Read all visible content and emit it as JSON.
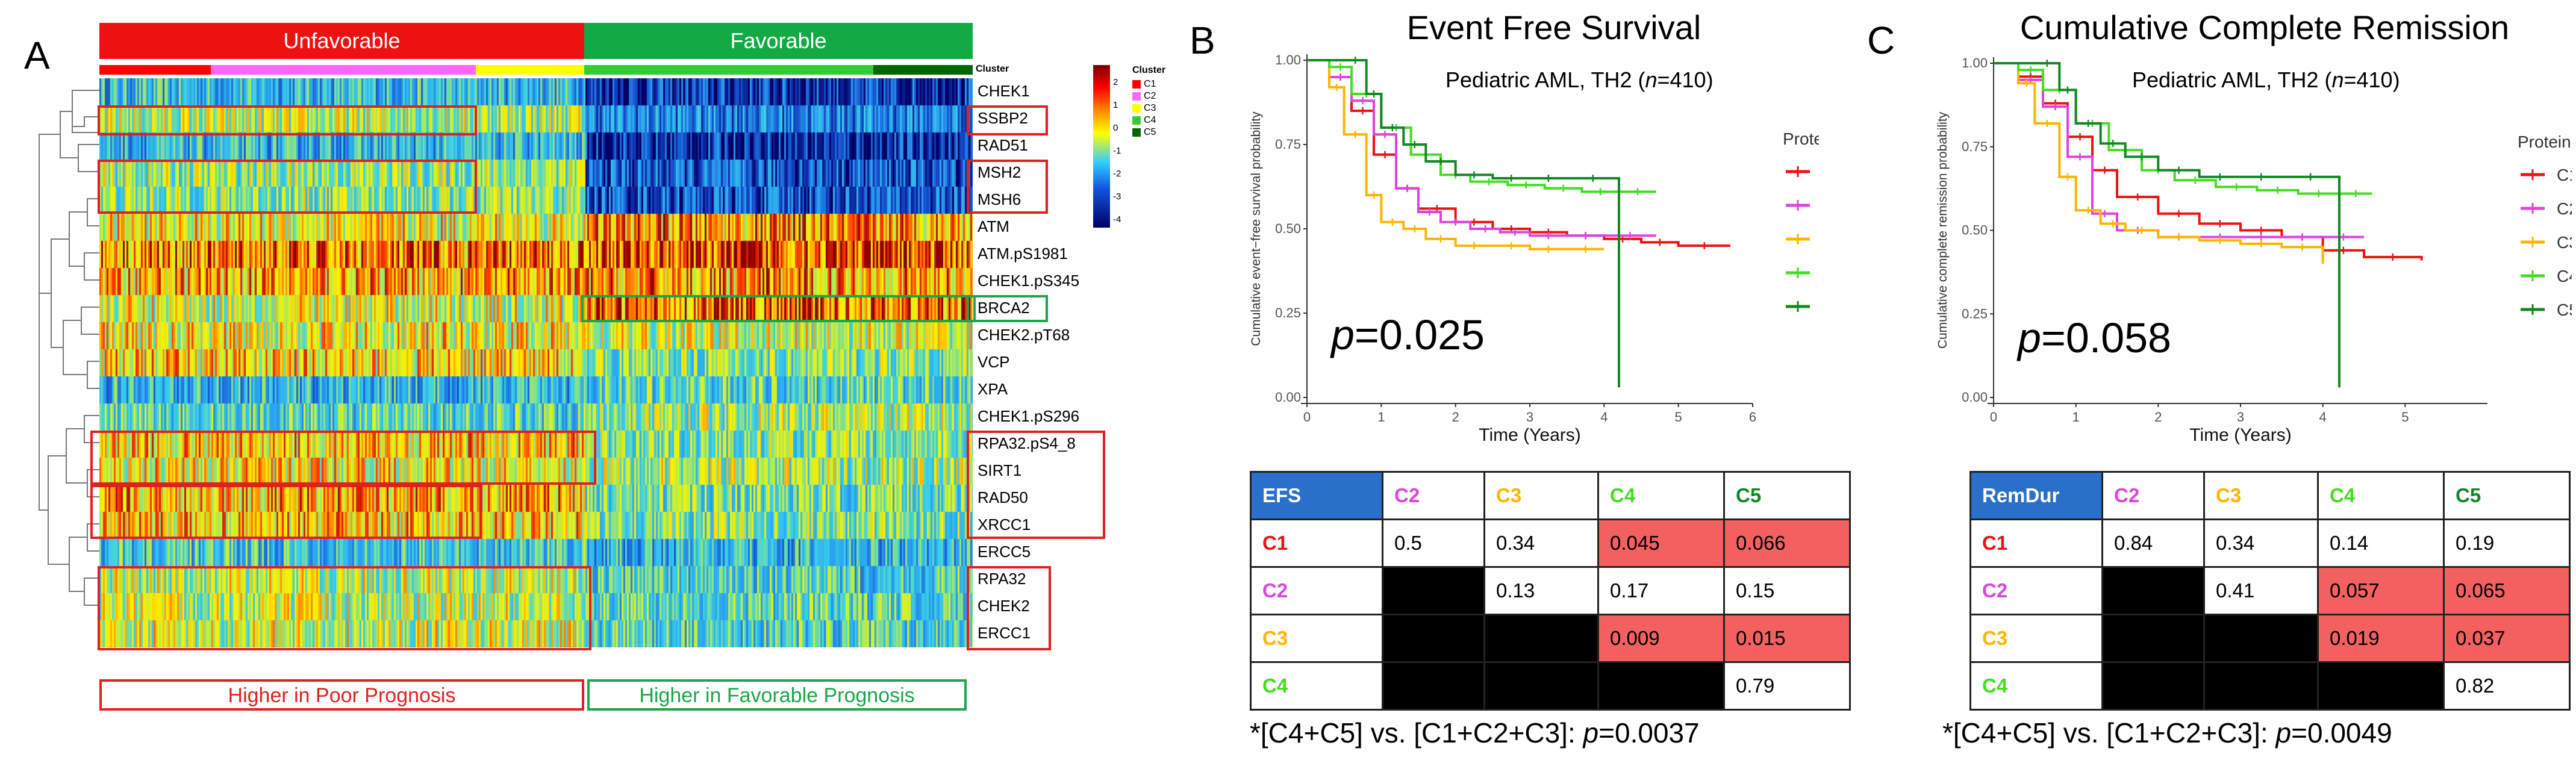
{
  "panels": {
    "a": "A",
    "b": "B",
    "c": "C"
  },
  "heatmap": {
    "unfavorable_label": "Unfavorable",
    "favorable_label": "Favorable",
    "cluster_row_label": "Cluster",
    "genes": [
      "CHEK1",
      "SSBP2",
      "RAD51",
      "MSH2",
      "MSH6",
      "ATM",
      "ATM.pS1981",
      "CHEK1.pS345",
      "BRCA2",
      "CHEK2.pT68",
      "VCP",
      "XPA",
      "CHEK1.pS296",
      "RPA32.pS4_8",
      "SIRT1",
      "RAD50",
      "XRCC1",
      "ERCC5",
      "RPA32",
      "CHEK2",
      "ERCC1"
    ],
    "legend": {
      "title": "Cluster",
      "items": [
        "C1",
        "C2",
        "C3",
        "C4",
        "C5"
      ],
      "colors": [
        "#ff0000",
        "#ff66ff",
        "#ffff00",
        "#33cc33",
        "#006600"
      ],
      "scale_ticks": [
        "2",
        "1",
        "0",
        "-1",
        "-2",
        "-3",
        "-4"
      ]
    },
    "poor_label": "Higher in Poor Prognosis",
    "favorable_prog_label": "Higher in Favorable Prognosis"
  },
  "colors": {
    "C1": "#ee1111",
    "C2": "#dd44dd",
    "C3": "#ffb400",
    "C4": "#44dd22",
    "C5": "#118822"
  },
  "chart_data": [
    {
      "type": "line",
      "title": "Event Free Survival",
      "subtitle_prefix": "Pediatric AML, TH2 (",
      "subtitle_n": "n",
      "subtitle_suffix": "=410)",
      "xlabel": "Time (Years)",
      "ylabel": "Cumulative event−free survival probability",
      "xlim": [
        0,
        6
      ],
      "ylim": [
        0,
        1
      ],
      "xticks": [
        "0",
        "1",
        "2",
        "3",
        "4",
        "5",
        "6"
      ],
      "yticks": [
        "0.00",
        "0.25",
        "0.50",
        "0.75",
        "1.00"
      ],
      "legend_title": "Protein Cluster",
      "p_label": "p",
      "p_value": "=0.025",
      "series": [
        {
          "name": "C1",
          "x": [
            0,
            0.3,
            0.6,
            0.9,
            1.2,
            1.5,
            2,
            2.5,
            3,
            3.5,
            4,
            4.5,
            5,
            5.7
          ],
          "y": [
            1,
            0.95,
            0.85,
            0.72,
            0.62,
            0.56,
            0.52,
            0.5,
            0.49,
            0.48,
            0.47,
            0.46,
            0.45,
            0.45
          ]
        },
        {
          "name": "C2",
          "x": [
            0,
            0.3,
            0.6,
            0.9,
            1.2,
            1.5,
            1.8,
            2.2,
            2.6,
            3,
            3.5,
            4,
            4.7
          ],
          "y": [
            1,
            0.95,
            0.88,
            0.78,
            0.62,
            0.55,
            0.52,
            0.5,
            0.49,
            0.48,
            0.48,
            0.48,
            0.48
          ]
        },
        {
          "name": "C3",
          "x": [
            0,
            0.3,
            0.5,
            0.8,
            1,
            1.3,
            1.6,
            2,
            2.5,
            3,
            3.5,
            4
          ],
          "y": [
            1,
            0.92,
            0.78,
            0.6,
            0.52,
            0.5,
            0.47,
            0.45,
            0.45,
            0.44,
            0.44,
            0.44
          ]
        },
        {
          "name": "C4",
          "x": [
            0,
            0.3,
            0.6,
            1,
            1.4,
            1.8,
            2.2,
            2.7,
            3.2,
            3.7,
            4.2,
            4.7
          ],
          "y": [
            1,
            0.98,
            0.9,
            0.8,
            0.72,
            0.66,
            0.64,
            0.63,
            0.62,
            0.61,
            0.61,
            0.61
          ]
        },
        {
          "name": "C5",
          "x": [
            0,
            0.5,
            0.8,
            1,
            1.3,
            1.6,
            2,
            2.5,
            3,
            3.5,
            4.2,
            4.2
          ],
          "y": [
            1,
            1,
            0.9,
            0.8,
            0.75,
            0.7,
            0.66,
            0.65,
            0.65,
            0.65,
            0.65,
            0.03
          ]
        }
      ],
      "table": {
        "corner": "EFS",
        "cols": [
          "C2",
          "C3",
          "C4",
          "C5"
        ],
        "rows": [
          {
            "label": "C1",
            "cells": [
              "0.5",
              "0.34",
              "0.045",
              "0.066"
            ],
            "hi": [
              false,
              false,
              true,
              true
            ],
            "blk": [
              false,
              false,
              false,
              false
            ]
          },
          {
            "label": "C2",
            "cells": [
              "",
              "0.13",
              "0.17",
              "0.15"
            ],
            "hi": [
              false,
              false,
              false,
              false
            ],
            "blk": [
              true,
              false,
              false,
              false
            ]
          },
          {
            "label": "C3",
            "cells": [
              "",
              "",
              "0.009",
              "0.015"
            ],
            "hi": [
              false,
              false,
              true,
              true
            ],
            "blk": [
              true,
              true,
              false,
              false
            ]
          },
          {
            "label": "C4",
            "cells": [
              "",
              "",
              "",
              "0.79"
            ],
            "hi": [
              false,
              false,
              false,
              false
            ],
            "blk": [
              true,
              true,
              true,
              false
            ]
          }
        ]
      },
      "footer_prefix": "*[C4+C5] vs. [C1+C2+C3]: ",
      "footer_p": "p",
      "footer_val": "=0.0037"
    },
    {
      "type": "line",
      "title": "Cumulative Complete Remission",
      "subtitle_prefix": "Pediatric AML, TH2 (",
      "subtitle_n": "n",
      "subtitle_suffix": "=410)",
      "xlabel": "Time (Years)",
      "ylabel": "Cumulative complete remission probability",
      "xlim": [
        0,
        6
      ],
      "ylim": [
        0,
        1
      ],
      "xticks": [
        "0",
        "1",
        "2",
        "3",
        "4",
        "5"
      ],
      "yticks": [
        "0.00",
        "0.25",
        "0.50",
        "0.75",
        "1.00"
      ],
      "legend_title": "Protein Cluster",
      "p_label": "p",
      "p_value": "=0.058",
      "series": [
        {
          "name": "C1",
          "x": [
            0,
            0.3,
            0.6,
            0.9,
            1.2,
            1.5,
            2,
            2.5,
            3,
            3.5,
            4,
            4.5,
            5.2
          ],
          "y": [
            1,
            0.96,
            0.88,
            0.78,
            0.68,
            0.6,
            0.55,
            0.52,
            0.5,
            0.48,
            0.44,
            0.42,
            0.41
          ]
        },
        {
          "name": "C2",
          "x": [
            0,
            0.3,
            0.6,
            0.9,
            1.2,
            1.5,
            2,
            2.5,
            3,
            3.5,
            4,
            4.5
          ],
          "y": [
            1,
            0.95,
            0.87,
            0.72,
            0.55,
            0.5,
            0.48,
            0.48,
            0.48,
            0.48,
            0.48,
            0.48
          ]
        },
        {
          "name": "C3",
          "x": [
            0,
            0.3,
            0.5,
            0.8,
            1,
            1.3,
            1.6,
            2,
            2.5,
            3,
            3.5,
            4
          ],
          "y": [
            1,
            0.94,
            0.82,
            0.66,
            0.56,
            0.52,
            0.5,
            0.48,
            0.47,
            0.46,
            0.45,
            0.4
          ]
        },
        {
          "name": "C4",
          "x": [
            0,
            0.3,
            0.6,
            1,
            1.4,
            1.8,
            2.2,
            2.7,
            3.2,
            3.7,
            4.2,
            4.6
          ],
          "y": [
            1,
            0.98,
            0.92,
            0.82,
            0.74,
            0.68,
            0.65,
            0.63,
            0.62,
            0.61,
            0.61,
            0.61
          ]
        },
        {
          "name": "C5",
          "x": [
            0,
            0.5,
            0.8,
            1,
            1.3,
            1.6,
            2,
            2.5,
            3,
            3.5,
            4.2,
            4.2
          ],
          "y": [
            1,
            1,
            0.92,
            0.82,
            0.76,
            0.72,
            0.68,
            0.66,
            0.66,
            0.66,
            0.66,
            0.03
          ]
        }
      ],
      "table": {
        "corner": "RemDur",
        "cols": [
          "C2",
          "C3",
          "C4",
          "C5"
        ],
        "rows": [
          {
            "label": "C1",
            "cells": [
              "0.84",
              "0.34",
              "0.14",
              "0.19"
            ],
            "hi": [
              false,
              false,
              false,
              false
            ],
            "blk": [
              false,
              false,
              false,
              false
            ]
          },
          {
            "label": "C2",
            "cells": [
              "",
              "0.41",
              "0.057",
              "0.065"
            ],
            "hi": [
              false,
              false,
              true,
              true
            ],
            "blk": [
              true,
              false,
              false,
              false
            ]
          },
          {
            "label": "C3",
            "cells": [
              "",
              "",
              "0.019",
              "0.037"
            ],
            "hi": [
              false,
              false,
              true,
              true
            ],
            "blk": [
              true,
              true,
              false,
              false
            ]
          },
          {
            "label": "C4",
            "cells": [
              "",
              "",
              "",
              "0.82"
            ],
            "hi": [
              false,
              false,
              false,
              false
            ],
            "blk": [
              true,
              true,
              true,
              false
            ]
          }
        ]
      },
      "footer_prefix": "*[C4+C5] vs. [C1+C2+C3]: ",
      "footer_p": "p",
      "footer_val": "=0.0049"
    }
  ]
}
